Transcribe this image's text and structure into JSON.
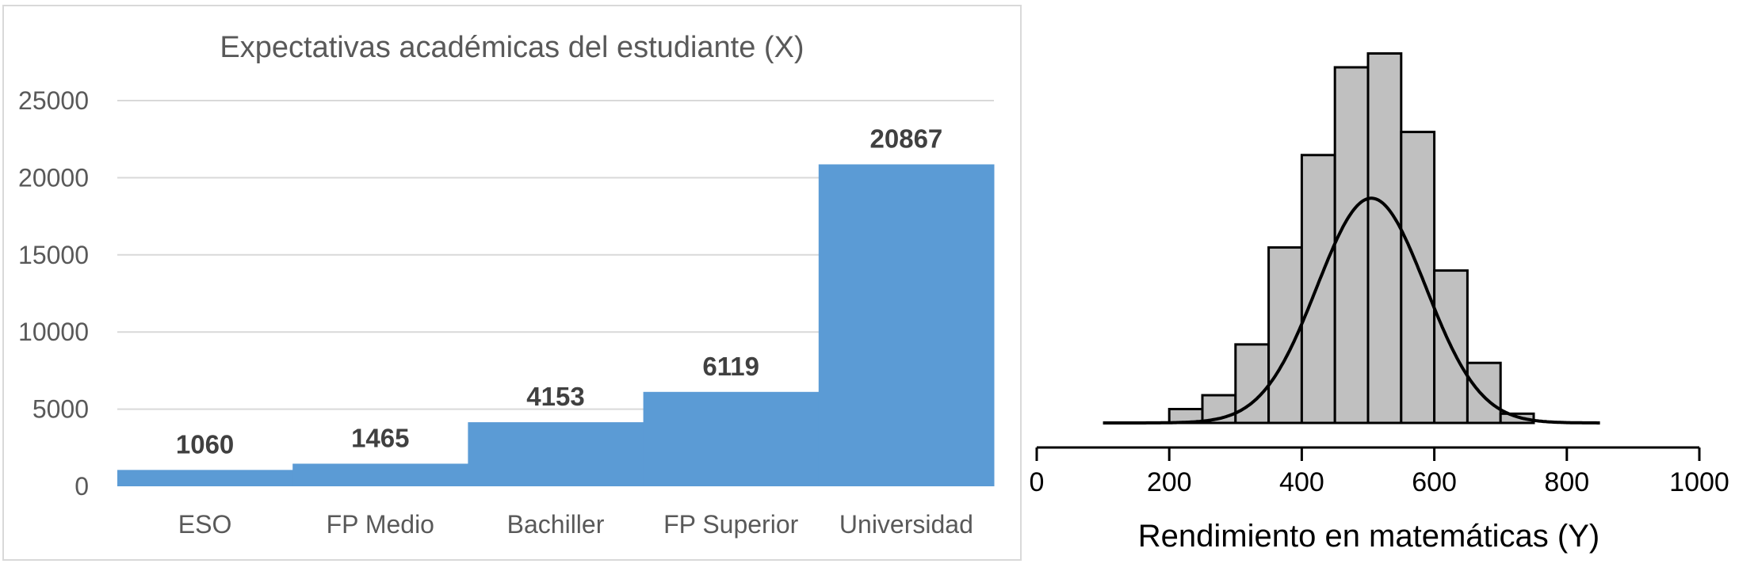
{
  "chart_data": [
    {
      "type": "bar",
      "title": "Expectativas académicas del estudiante (X)",
      "categories": [
        "ESO",
        "FP Medio",
        "Bachiller",
        "FP Superior",
        "Universidad"
      ],
      "values": [
        1060,
        1465,
        4153,
        6119,
        20867
      ],
      "ylim": [
        0,
        25000
      ],
      "yticks": [
        0,
        5000,
        10000,
        15000,
        20000,
        25000
      ],
      "grid": true,
      "bar_color": "#5b9bd5",
      "data_labels": [
        "1060",
        "1465",
        "4153",
        "6119",
        "20867"
      ]
    },
    {
      "type": "histogram",
      "xlabel": "Rendimiento en matemáticas (Y)",
      "xlim": [
        0,
        1000
      ],
      "xticks": [
        0,
        200,
        400,
        600,
        800,
        1000
      ],
      "bin_width": 50,
      "bins": [
        {
          "x0": 200,
          "x1": 250,
          "density": 0.0003
        },
        {
          "x0": 250,
          "x1": 300,
          "density": 0.0006
        },
        {
          "x0": 300,
          "x1": 350,
          "density": 0.0017
        },
        {
          "x0": 350,
          "x1": 400,
          "density": 0.0038
        },
        {
          "x0": 400,
          "x1": 450,
          "density": 0.0058
        },
        {
          "x0": 450,
          "x1": 500,
          "density": 0.0077
        },
        {
          "x0": 500,
          "x1": 550,
          "density": 0.008
        },
        {
          "x0": 550,
          "x1": 600,
          "density": 0.0063
        },
        {
          "x0": 600,
          "x1": 650,
          "density": 0.0033
        },
        {
          "x0": 650,
          "x1": 700,
          "density": 0.0013
        },
        {
          "x0": 700,
          "x1": 750,
          "density": 0.0002
        }
      ],
      "density_curve": {
        "mean": 505,
        "sd": 82,
        "from": 100,
        "to": 850
      },
      "bar_color": "#c0c0c0",
      "ymax": 0.0083
    }
  ]
}
